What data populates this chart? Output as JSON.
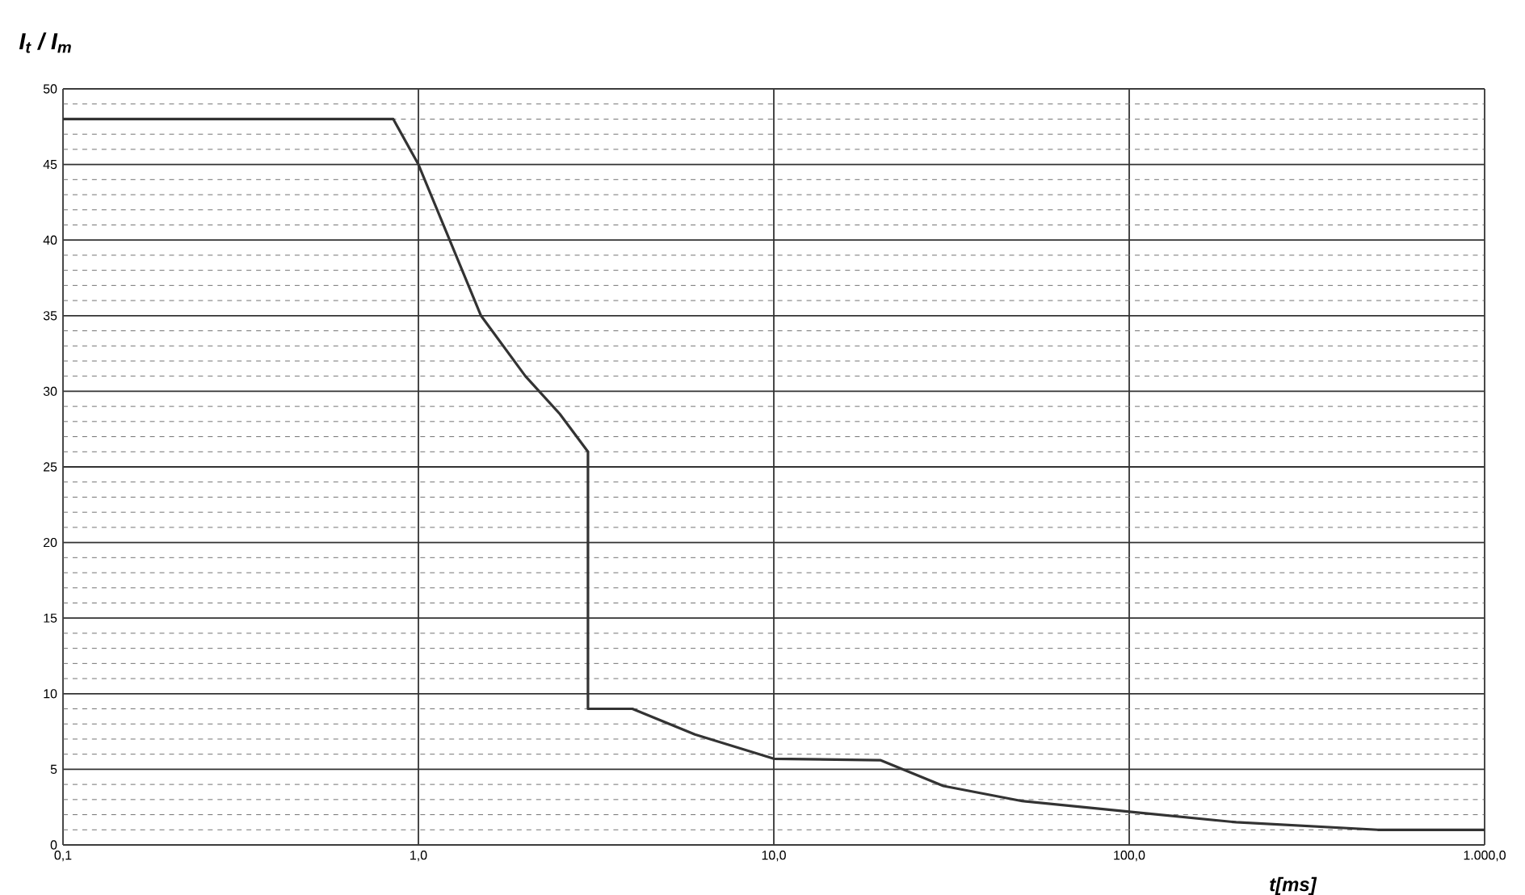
{
  "chart_data": {
    "type": "line",
    "xlabel": "t[ms]",
    "ylabel": "I$_{t}$ / I$_{m}$",
    "x": [
      0.1,
      0.85,
      1.0,
      1.5,
      2.0,
      2.5,
      3.0,
      3.0,
      4.0,
      6.0,
      10.0,
      20.0,
      30.0,
      50.0,
      100.0,
      200.0,
      500.0,
      1000.0
    ],
    "series": [
      {
        "color": "#333333",
        "values": [
          48,
          48,
          45,
          35,
          31,
          28.5,
          26,
          9,
          9,
          7.3,
          5.7,
          5.6,
          3.9,
          2.9,
          2.2,
          1.5,
          1,
          1
        ]
      }
    ],
    "log": "x",
    "xlim": [
      0.1,
      1000
    ],
    "ylim": [
      0,
      50
    ],
    "xticks": [
      {
        "value": 0.1,
        "label": "0,1"
      },
      {
        "value": 1,
        "label": "1,0"
      },
      {
        "value": 10,
        "label": "10,0"
      },
      {
        "value": 100,
        "label": "100,0"
      },
      {
        "value": 1000,
        "label": "1.000,0"
      }
    ],
    "yticks": [
      0,
      5,
      10,
      15,
      20,
      25,
      30,
      35,
      40,
      45,
      50
    ],
    "grid": true,
    "marker": "none",
    "line_style": "solid"
  }
}
